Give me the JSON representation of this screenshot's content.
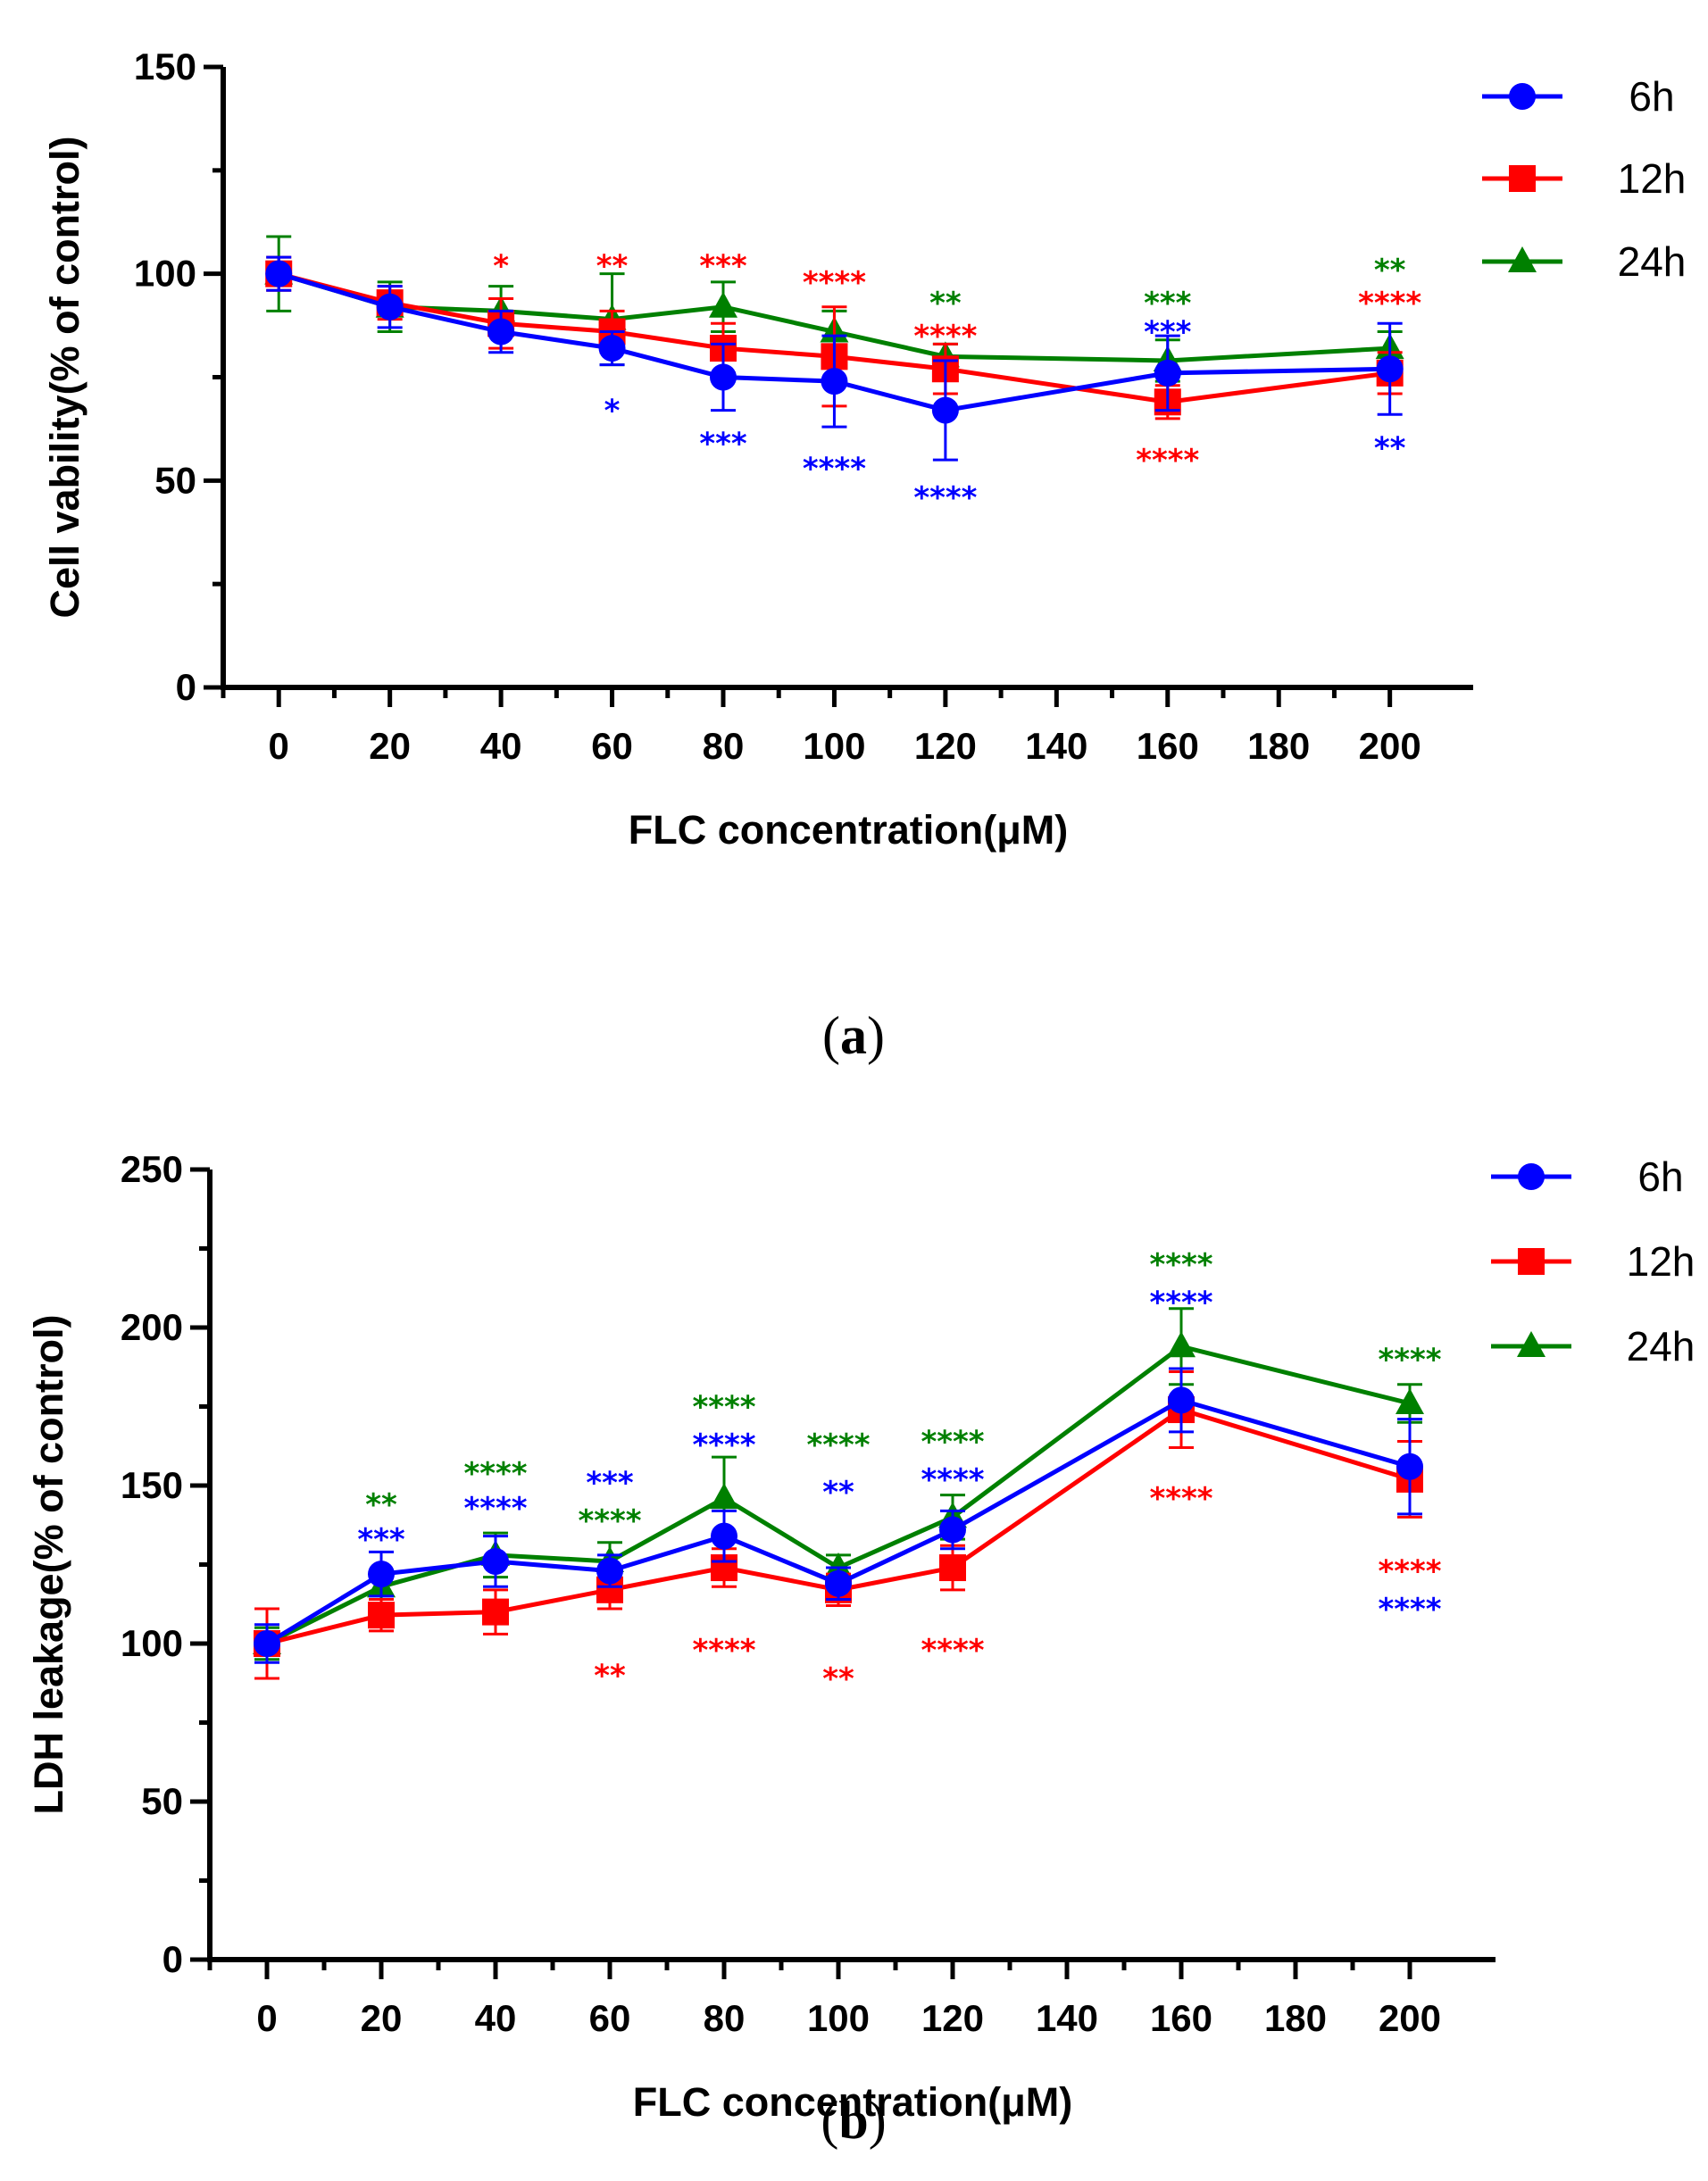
{
  "chart_data": [
    {
      "type": "line",
      "panel_label": "a",
      "title": "",
      "xlabel": "FLC concentration(μM)",
      "ylabel": "Cell vability(%  of control)",
      "xlim": [
        -10,
        215
      ],
      "ylim": [
        0,
        150
      ],
      "xticks": [
        0,
        20,
        40,
        60,
        80,
        100,
        120,
        140,
        160,
        180,
        200
      ],
      "xtick_labels": [
        "0",
        "20",
        "40",
        "60",
        "80",
        "100",
        "120",
        "140",
        "160",
        "180",
        "200"
      ],
      "yticks": [
        0,
        50,
        100,
        150
      ],
      "ytick_labels": [
        "0",
        "50",
        "100",
        "150"
      ],
      "legend_position": "top-right",
      "x": [
        0,
        20,
        40,
        60,
        80,
        100,
        120,
        160,
        200
      ],
      "series": [
        {
          "name": "6h",
          "color": "#0000ff",
          "marker": "circle",
          "values": [
            100,
            92,
            86,
            82,
            75,
            74,
            67,
            76,
            77
          ],
          "errors": [
            4,
            5,
            5,
            4,
            8,
            11,
            12,
            9,
            11
          ]
        },
        {
          "name": "12h",
          "color": "#ff0000",
          "marker": "square",
          "values": [
            100,
            93,
            88,
            86,
            82,
            80,
            77,
            69,
            76
          ],
          "errors": [
            4,
            4,
            6,
            5,
            6,
            12,
            6,
            4,
            5
          ]
        },
        {
          "name": "24h",
          "color": "#008000",
          "marker": "triangle",
          "values": [
            100,
            92,
            91,
            89,
            92,
            86,
            80,
            79,
            82
          ],
          "errors": [
            9,
            6,
            6,
            11,
            6,
            5,
            3,
            5,
            4
          ]
        }
      ],
      "annotations": [
        {
          "x": 40,
          "y": 102,
          "text": "*",
          "color": "#ff0000"
        },
        {
          "x": 60,
          "y": 102,
          "text": "**",
          "color": "#ff0000"
        },
        {
          "x": 80,
          "y": 102,
          "text": "***",
          "color": "#ff0000"
        },
        {
          "x": 100,
          "y": 98,
          "text": "****",
          "color": "#ff0000"
        },
        {
          "x": 120,
          "y": 93,
          "text": "**",
          "color": "#008000"
        },
        {
          "x": 120,
          "y": 85,
          "text": "****",
          "color": "#ff0000"
        },
        {
          "x": 160,
          "y": 93,
          "text": "***",
          "color": "#008000"
        },
        {
          "x": 160,
          "y": 86,
          "text": "***",
          "color": "#0000ff"
        },
        {
          "x": 200,
          "y": 101,
          "text": "**",
          "color": "#008000"
        },
        {
          "x": 200,
          "y": 93,
          "text": "****",
          "color": "#ff0000"
        },
        {
          "x": 60,
          "y": 67,
          "text": "*",
          "color": "#0000ff"
        },
        {
          "x": 80,
          "y": 59,
          "text": "***",
          "color": "#0000ff"
        },
        {
          "x": 100,
          "y": 53,
          "text": "****",
          "color": "#0000ff"
        },
        {
          "x": 120,
          "y": 46,
          "text": "****",
          "color": "#0000ff"
        },
        {
          "x": 160,
          "y": 55,
          "text": "****",
          "color": "#ff0000"
        },
        {
          "x": 200,
          "y": 58,
          "text": "**",
          "color": "#0000ff"
        }
      ]
    },
    {
      "type": "line",
      "panel_label": "b",
      "title": "",
      "xlabel": "FLC concentration(μM)",
      "ylabel": "LDH leakage(% of control)",
      "xlim": [
        -10,
        215
      ],
      "ylim": [
        0,
        250
      ],
      "xticks": [
        0,
        20,
        40,
        60,
        80,
        100,
        120,
        140,
        160,
        180,
        200
      ],
      "xtick_labels": [
        "0",
        "20",
        "40",
        "60",
        "80",
        "100",
        "120",
        "140",
        "160",
        "180",
        "200"
      ],
      "yticks": [
        0,
        50,
        100,
        150,
        200,
        250
      ],
      "ytick_labels": [
        "0",
        "50",
        "100",
        "150",
        "200",
        "250"
      ],
      "legend_position": "top-right",
      "x": [
        0,
        20,
        40,
        60,
        80,
        100,
        120,
        160,
        200
      ],
      "series": [
        {
          "name": "6h",
          "color": "#0000ff",
          "marker": "circle",
          "values": [
            100,
            122,
            126,
            123,
            134,
            119,
            136,
            177,
            156
          ],
          "errors": [
            6,
            7,
            8,
            5,
            8,
            5,
            6,
            10,
            15
          ]
        },
        {
          "name": "12h",
          "color": "#ff0000",
          "marker": "square",
          "values": [
            100,
            109,
            110,
            117,
            124,
            117,
            124,
            174,
            152
          ],
          "errors": [
            11,
            5,
            7,
            6,
            6,
            5,
            7,
            12,
            12
          ]
        },
        {
          "name": "24h",
          "color": "#008000",
          "marker": "triangle",
          "values": [
            100,
            118,
            128,
            126,
            146,
            124,
            140,
            194,
            176
          ],
          "errors": [
            5,
            4,
            7,
            6,
            13,
            4,
            7,
            12,
            6
          ]
        }
      ],
      "annotations": [
        {
          "x": 20,
          "y": 144,
          "text": "**",
          "color": "#008000"
        },
        {
          "x": 20,
          "y": 133,
          "text": "***",
          "color": "#0000ff"
        },
        {
          "x": 40,
          "y": 154,
          "text": "****",
          "color": "#008000"
        },
        {
          "x": 40,
          "y": 143,
          "text": "****",
          "color": "#0000ff"
        },
        {
          "x": 60,
          "y": 151,
          "text": "***",
          "color": "#0000ff"
        },
        {
          "x": 60,
          "y": 139,
          "text": "****",
          "color": "#008000"
        },
        {
          "x": 80,
          "y": 175,
          "text": "****",
          "color": "#008000"
        },
        {
          "x": 80,
          "y": 163,
          "text": "****",
          "color": "#0000ff"
        },
        {
          "x": 100,
          "y": 163,
          "text": "****",
          "color": "#008000"
        },
        {
          "x": 100,
          "y": 148,
          "text": "**",
          "color": "#0000ff"
        },
        {
          "x": 120,
          "y": 164,
          "text": "****",
          "color": "#008000"
        },
        {
          "x": 120,
          "y": 152,
          "text": "****",
          "color": "#0000ff"
        },
        {
          "x": 160,
          "y": 220,
          "text": "****",
          "color": "#008000"
        },
        {
          "x": 160,
          "y": 208,
          "text": "****",
          "color": "#0000ff"
        },
        {
          "x": 200,
          "y": 190,
          "text": "****",
          "color": "#008000"
        },
        {
          "x": 60,
          "y": 90,
          "text": "**",
          "color": "#ff0000"
        },
        {
          "x": 80,
          "y": 98,
          "text": "****",
          "color": "#ff0000"
        },
        {
          "x": 100,
          "y": 89,
          "text": "**",
          "color": "#ff0000"
        },
        {
          "x": 120,
          "y": 98,
          "text": "****",
          "color": "#ff0000"
        },
        {
          "x": 160,
          "y": 146,
          "text": "****",
          "color": "#ff0000"
        },
        {
          "x": 200,
          "y": 123,
          "text": "****",
          "color": "#ff0000"
        },
        {
          "x": 200,
          "y": 111,
          "text": "****",
          "color": "#0000ff"
        }
      ]
    }
  ]
}
